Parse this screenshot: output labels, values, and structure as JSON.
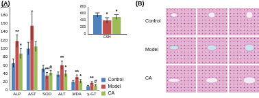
{
  "chart_data": [
    {
      "type": "bar",
      "title": "(A)",
      "categories": [
        "ALP",
        "AST",
        "SOD",
        "ALT",
        "MDA",
        "γ-GT"
      ],
      "series": [
        {
          "name": "Control",
          "color": "#4f81bd",
          "values": [
            65,
            100,
            52,
            38,
            20,
            10
          ],
          "errors": [
            10,
            15,
            8,
            6,
            3,
            2
          ]
        },
        {
          "name": "Model",
          "color": "#c0504d",
          "values": [
            118,
            155,
            35,
            60,
            32,
            18
          ],
          "errors": [
            15,
            35,
            8,
            10,
            5,
            3
          ]
        },
        {
          "name": "CA",
          "color": "#9bbb59",
          "values": [
            88,
            105,
            42,
            40,
            22,
            12
          ],
          "errors": [
            12,
            12,
            6,
            7,
            4,
            2
          ]
        }
      ],
      "ylim": [
        0,
        200
      ],
      "yticks": [
        0,
        20,
        40,
        60,
        80,
        100,
        120,
        140,
        160,
        180,
        200
      ],
      "grid": false,
      "legend": "right",
      "annotations": [
        {
          "text": "**",
          "series": "Model",
          "category": "ALP"
        },
        {
          "text": "*",
          "series": "CA",
          "category": "ALP"
        },
        {
          "text": "**",
          "series": "Model",
          "category": "SOD"
        },
        {
          "text": "#",
          "series": "CA",
          "category": "SOD"
        },
        {
          "text": "**",
          "series": "Model",
          "category": "ALT"
        },
        {
          "text": "*",
          "series": "CA",
          "category": "ALT"
        },
        {
          "text": "**",
          "series": "Model",
          "category": "MDA"
        },
        {
          "text": "*",
          "series": "CA",
          "category": "MDA"
        },
        {
          "text": "**",
          "series": "Model",
          "category": "γ-GT"
        },
        {
          "text": "#",
          "series": "CA",
          "category": "γ-GT"
        }
      ]
    },
    {
      "type": "bar",
      "categories": [
        "GSH"
      ],
      "series": [
        {
          "name": "Control",
          "color": "#4f81bd",
          "values": [
            560
          ],
          "errors": [
            60
          ]
        },
        {
          "name": "Model",
          "color": "#c0504d",
          "values": [
            400
          ],
          "errors": [
            80
          ]
        },
        {
          "name": "CA",
          "color": "#9bbb59",
          "values": [
            500
          ],
          "errors": [
            70
          ]
        }
      ],
      "ylim": [
        0,
        800
      ],
      "yticks": [
        0,
        200,
        400,
        600,
        800
      ],
      "grid": false,
      "annotations": [
        {
          "text": "*",
          "series": "Model",
          "category": "GSH"
        },
        {
          "text": "*",
          "series": "CA",
          "category": "GSH"
        }
      ]
    }
  ],
  "panel_b": {
    "title": "(B)",
    "rows": [
      "Control",
      "Model",
      "CA"
    ],
    "columns": 3
  }
}
